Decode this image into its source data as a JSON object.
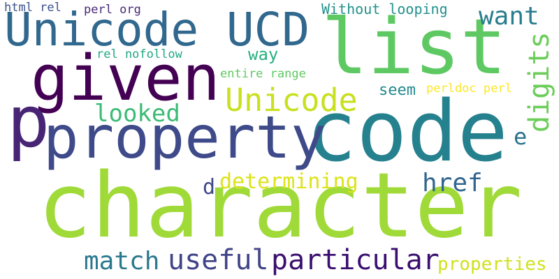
{
  "words": [
    {
      "text": "character",
      "color": "#a0da39"
    },
    {
      "text": "code",
      "color": "#26818e"
    },
    {
      "text": "given",
      "color": "#440154"
    },
    {
      "text": "property",
      "color": "#3e4a89"
    },
    {
      "text": "list",
      "color": "#5ec962"
    },
    {
      "text": "Unicode UCD",
      "color": "#31688e"
    },
    {
      "text": "p",
      "color": "#482475"
    },
    {
      "text": "particular",
      "color": "#3b0f70"
    },
    {
      "text": "useful",
      "color": "#414487"
    },
    {
      "text": "Unicode",
      "color": "#c8e020"
    },
    {
      "text": "match",
      "color": "#2a788e"
    },
    {
      "text": "want",
      "color": "#287d8e"
    },
    {
      "text": "digits",
      "color": "#6ccd5a"
    },
    {
      "text": "looked",
      "color": "#3bbb75"
    },
    {
      "text": "determining",
      "color": "#dde318"
    },
    {
      "text": "href",
      "color": "#32658e"
    },
    {
      "text": "properties",
      "color": "#d0e11c"
    },
    {
      "text": "e",
      "color": "#2c718e"
    },
    {
      "text": "d",
      "color": "#3f4889"
    },
    {
      "text": "Without looping",
      "color": "#21918c"
    },
    {
      "text": "seem",
      "color": "#23898e"
    },
    {
      "text": "way",
      "color": "#2ab07f"
    },
    {
      "text": "entire range",
      "color": "#5ec962"
    },
    {
      "text": "perldoc perl",
      "color": "#fde725"
    },
    {
      "text": "rel nofollow",
      "color": "#22a785"
    },
    {
      "text": "html rel",
      "color": "#3b528b"
    },
    {
      "text": "perl org",
      "color": "#482878"
    }
  ]
}
